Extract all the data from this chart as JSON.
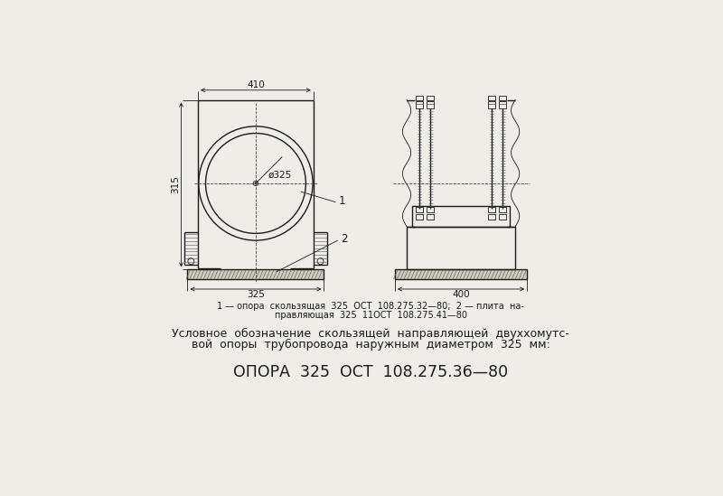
{
  "bg_color": "#f0ede8",
  "line_color": "#1a1a1a",
  "text_color": "#1a1a1a",
  "figsize": [
    8.0,
    5.49
  ],
  "dpi": 100,
  "caption_line1": "1 — опора  скользящая  325  ОСТ  108.275.32—80;  2 — плита  на-",
  "caption_line2": "правляющая  325  11ОСТ  108.275.41—80",
  "desc_line1": "Условное  обозначение  скользящей  направляющей  двуххомутс-",
  "desc_line2": "вой  опоры  трубопровода  наружным  диаметром  325  мм:",
  "designation": "ОПОРА  325  ОСТ  108.275.36—80"
}
